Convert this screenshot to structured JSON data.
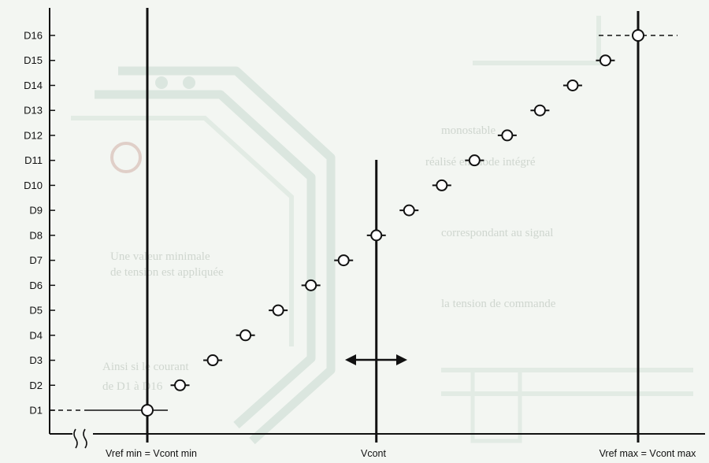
{
  "chart_data": {
    "type": "scatter",
    "title": "",
    "xlabel": "",
    "ylabel": "",
    "y_tick_labels": [
      "D1",
      "D2",
      "D3",
      "D4",
      "D5",
      "D6",
      "D7",
      "D8",
      "D9",
      "D10",
      "D11",
      "D12",
      "D13",
      "D14",
      "D15",
      "D16"
    ],
    "x_labels": {
      "vref_min": "Vref min = Vcont min",
      "vcont": "Vcont",
      "vref_max": "Vref max = Vcont max"
    },
    "xlim": [
      0,
      15
    ],
    "ylim": [
      1,
      16
    ],
    "points": [
      {
        "x": 0,
        "y": 1
      },
      {
        "x": 1,
        "y": 2
      },
      {
        "x": 2,
        "y": 3
      },
      {
        "x": 3,
        "y": 4
      },
      {
        "x": 4,
        "y": 5
      },
      {
        "x": 5,
        "y": 6
      },
      {
        "x": 6,
        "y": 7
      },
      {
        "x": 7,
        "y": 8
      },
      {
        "x": 8,
        "y": 9
      },
      {
        "x": 9,
        "y": 10
      },
      {
        "x": 10,
        "y": 11
      },
      {
        "x": 11,
        "y": 12
      },
      {
        "x": 12,
        "y": 13
      },
      {
        "x": 13,
        "y": 14
      },
      {
        "x": 14,
        "y": 15
      },
      {
        "x": 15,
        "y": 16
      }
    ],
    "vertical_markers": [
      {
        "x": 0,
        "label_key": "vref_min"
      },
      {
        "x": 7,
        "label_key": "vcont"
      },
      {
        "x": 15,
        "label_key": "vref_max"
      }
    ],
    "grid": false,
    "legend": "none",
    "axis_break": "x-axis near origin",
    "colors": {
      "ink": "#111111",
      "background": "#f3f6f2"
    }
  }
}
